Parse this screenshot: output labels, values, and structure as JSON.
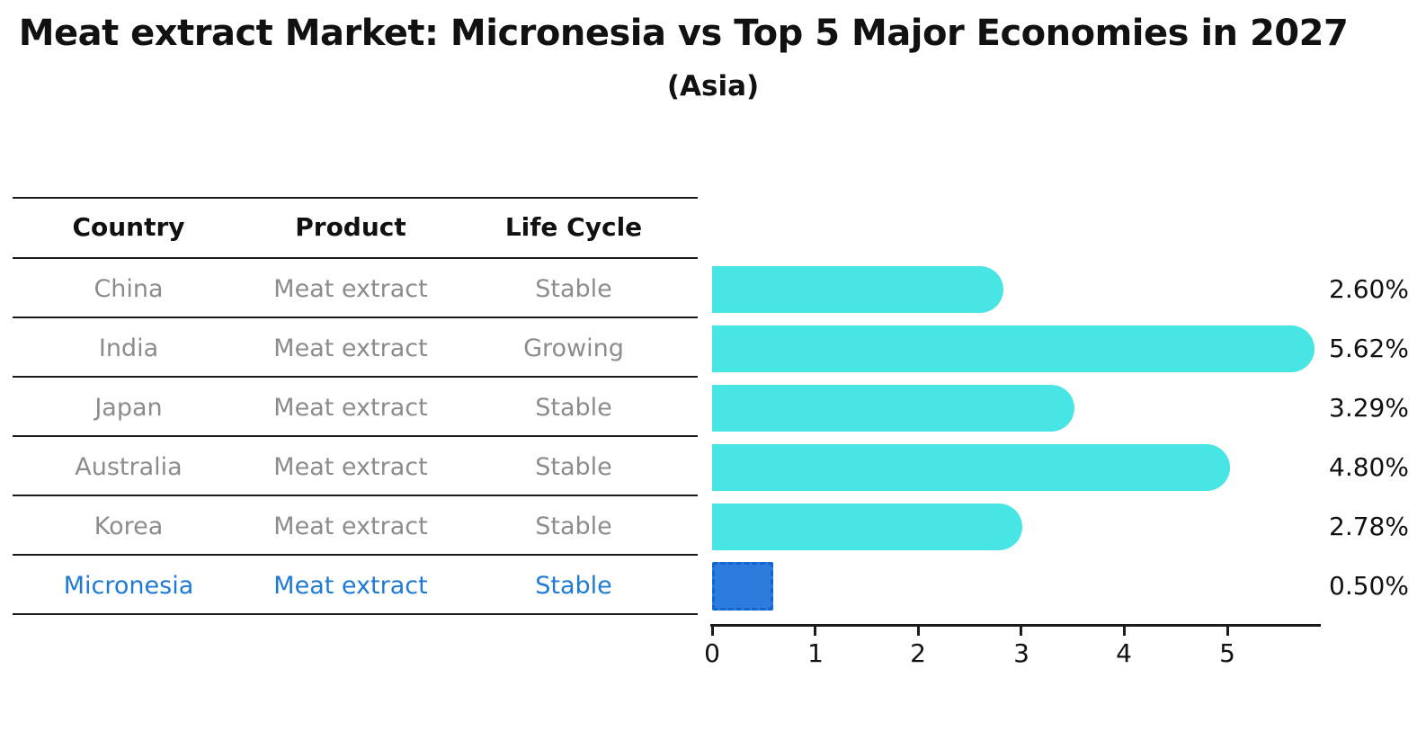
{
  "title": "Meat extract Market: Micronesia vs Top 5 Major Economies in 2027",
  "subtitle": "(Asia)",
  "table": {
    "headers": {
      "country": "Country",
      "product": "Product",
      "life_cycle": "Life Cycle"
    },
    "rows": [
      {
        "country": "China",
        "product": "Meat extract",
        "life_cycle": "Stable",
        "highlighted": false
      },
      {
        "country": "India",
        "product": "Meat extract",
        "life_cycle": "Growing",
        "highlighted": false
      },
      {
        "country": "Japan",
        "product": "Meat extract",
        "life_cycle": "Stable",
        "highlighted": false
      },
      {
        "country": "Australia",
        "product": "Meat extract",
        "life_cycle": "Stable",
        "highlighted": false
      },
      {
        "country": "Korea",
        "product": "Meat extract",
        "life_cycle": "Stable",
        "highlighted": false
      },
      {
        "country": "Micronesia",
        "product": "Meat extract",
        "life_cycle": "Stable",
        "highlighted": true
      }
    ]
  },
  "chart_data": {
    "type": "bar",
    "orientation": "horizontal",
    "title": "Meat extract Market: Micronesia vs Top 5 Major Economies in 2027",
    "subtitle": "(Asia)",
    "categories": [
      "China",
      "India",
      "Japan",
      "Australia",
      "Korea",
      "Micronesia"
    ],
    "values": [
      2.6,
      5.62,
      3.29,
      4.8,
      2.78,
      0.5
    ],
    "value_labels": [
      "2.60%",
      "5.62%",
      "3.29%",
      "4.80%",
      "2.78%",
      "0.50%"
    ],
    "highlight_index": 5,
    "xticks": [
      "0",
      "1",
      "2",
      "3",
      "4",
      "5"
    ],
    "xlim": [
      0,
      5.9
    ],
    "grid": false,
    "legend": "none"
  },
  "colors": {
    "bar": "#48E5E5",
    "highlight_bar": "#2B7CDC",
    "highlight_border": "#1266CC",
    "accent_text": "#1E7AD4",
    "muted_text": "#8C8C8C",
    "heading_text": "#111111",
    "axis": "#1A1A1A"
  }
}
